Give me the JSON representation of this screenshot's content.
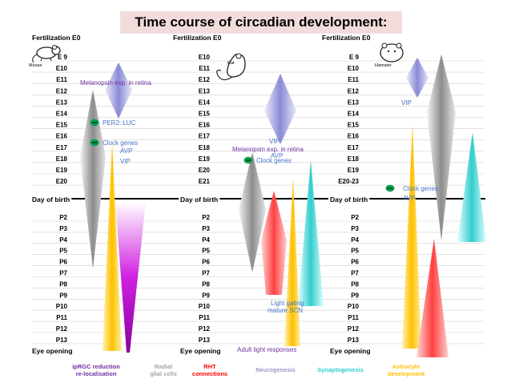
{
  "title": "Time course of circadian development:",
  "species": [
    {
      "id": "mouse",
      "name": "Mouse",
      "fertilization": "Fertilization E0",
      "embryonic": [
        "E 9",
        "E10",
        "E11",
        "E12",
        "E13",
        "E14",
        "E15",
        "E16",
        "E17",
        "E18",
        "E19",
        "E20"
      ],
      "birth": "Day of birth",
      "postnatal": [
        "P2",
        "P3",
        "P4",
        "P5",
        "P6",
        "P7",
        "P8",
        "P9",
        "P10",
        "P11",
        "P12",
        "P13"
      ],
      "eye_opening": "Eye opening",
      "events": [
        {
          "label": "Melanopsin exp. in retina",
          "color": "#7030a0"
        },
        {
          "label": "PER2::LUC",
          "color": "#4472c4",
          "marker": true
        },
        {
          "label": "Clock genes",
          "color": "#4472c4",
          "marker": true
        },
        {
          "label": "AVP",
          "color": "#4472c4"
        },
        {
          "label": "VIP",
          "color": "#4472c4"
        }
      ]
    },
    {
      "id": "rat",
      "name": "Rat",
      "fertilization": "Fertilization E0",
      "embryonic": [
        "E10",
        "E11",
        "E12",
        "E13",
        "E14",
        "E15",
        "E16",
        "E17",
        "E18",
        "E19",
        "E20",
        "E21"
      ],
      "birth": "Day of birth",
      "postnatal": [
        "P2",
        "P3",
        "P4",
        "P5",
        "P6",
        "P7",
        "P8",
        "P9",
        "P10",
        "P11",
        "P12",
        "P13"
      ],
      "eye_opening": "Eye opening",
      "events": [
        {
          "label": "VIP",
          "color": "#4472c4"
        },
        {
          "label": "Melanopsin exp. in retina",
          "color": "#7030a0"
        },
        {
          "label": "AVP",
          "color": "#4472c4"
        },
        {
          "label": "Clock genes",
          "color": "#4472c4",
          "marker": true
        },
        {
          "label": "Light gating",
          "color": "#4472c4"
        },
        {
          "label": "mature SCN",
          "color": "#4472c4"
        },
        {
          "label": "Adult light responses",
          "color": "#7030a0"
        }
      ]
    },
    {
      "id": "hamster",
      "name": "Hamster",
      "fertilization": "Fertilization E0",
      "embryonic": [
        "E 9",
        "E10",
        "E11",
        "E12",
        "E13",
        "E14",
        "E15",
        "E16",
        "E17",
        "E18",
        "E19",
        "E20-23"
      ],
      "birth": "Day of birth",
      "postnatal": [
        "P2",
        "P3",
        "P4",
        "P5",
        "P6",
        "P7",
        "P8",
        "P9",
        "P10",
        "P11",
        "P12",
        "P13"
      ],
      "eye_opening": "Eye opening",
      "events": [
        {
          "label": "VIP",
          "color": "#4472c4"
        },
        {
          "label": "Clock genes",
          "color": "#4472c4",
          "marker": true
        },
        {
          "label": "AVP",
          "color": "#4472c4"
        }
      ]
    }
  ],
  "legend": [
    {
      "label": "ipRGC reduction re-localisation",
      "lines": [
        "ipRGC reduction",
        "re-localisation"
      ],
      "color": "#7030a0"
    },
    {
      "label": "Radial glial cells",
      "lines": [
        "Radial",
        "glial cells"
      ],
      "color": "#a6a6a6"
    },
    {
      "label": "RHT connections",
      "lines": [
        "RHT",
        "connections"
      ],
      "color": "#ff0000"
    },
    {
      "label": "Neurogenesis",
      "lines": [
        "Neurogenesis"
      ],
      "color": "#9999cc"
    },
    {
      "label": "Synaptogenesis",
      "lines": [
        "Synaptogenesis"
      ],
      "color": "#33cccc"
    },
    {
      "label": "Astrocyte development",
      "lines": [
        "Astrocyte",
        "development"
      ],
      "color": "#ffc000"
    }
  ],
  "process_colors": {
    "ipRGC": "#b000c0",
    "radial_glia": "#a6a6a6",
    "RHT": "#ff4444",
    "neurogenesis": "#9999dd",
    "synaptogenesis": "#33cccc",
    "astrocyte": "#ffc000"
  }
}
